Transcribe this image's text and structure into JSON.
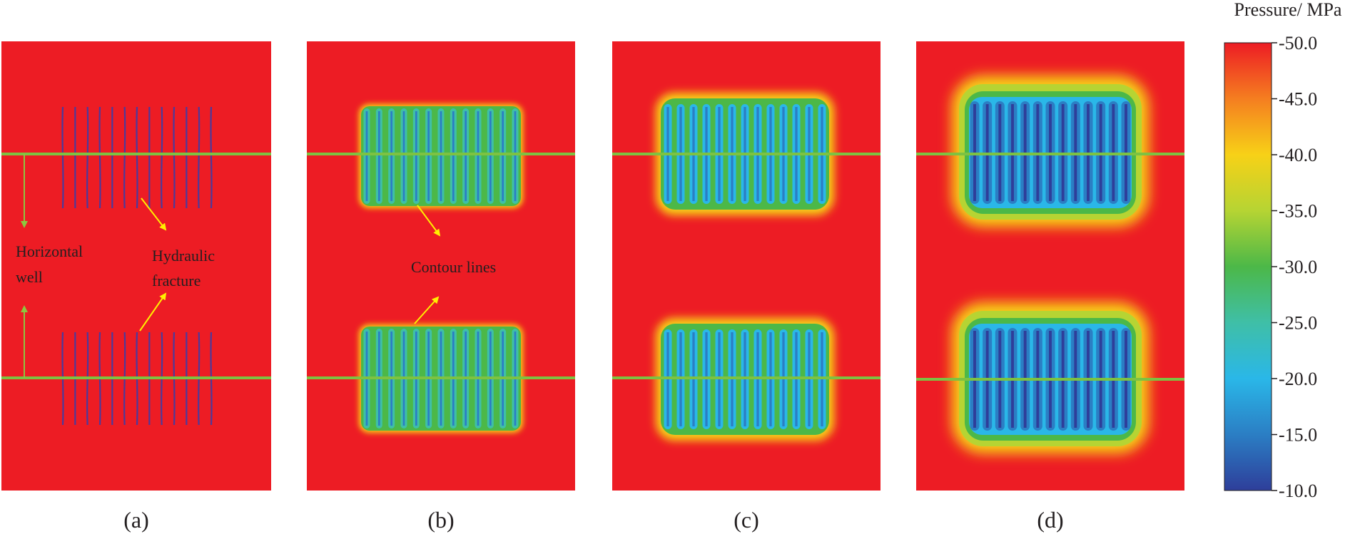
{
  "panels": [
    {
      "id": "a",
      "label": "(a)"
    },
    {
      "id": "b",
      "label": "(b)"
    },
    {
      "id": "c",
      "label": "(c)"
    },
    {
      "id": "d",
      "label": "(d)"
    }
  ],
  "annotations": {
    "horizontal_well": [
      "Horizontal",
      "well"
    ],
    "hydraulic_fracture": [
      "Hydraulic",
      "fracture"
    ],
    "contour_lines": "Contour lines"
  },
  "colorbar": {
    "title": "Pressure/ MPa",
    "ticks": [
      "-50.0",
      "-45.0",
      "-40.0",
      "-35.0",
      "-30.0",
      "-25.0",
      "-20.0",
      "-15.0",
      "-10.0"
    ],
    "range": [
      -50.0,
      -10.0
    ],
    "colors": [
      "#ed1c24",
      "#f57e20",
      "#f7d117",
      "#b6d433",
      "#4cb848",
      "#3fbfa7",
      "#2ab7e8",
      "#2b7ec4",
      "#2e3e9a"
    ]
  },
  "colors": {
    "background_red": "#ed1c24",
    "well_line": "#7dc242",
    "arrow_green": "#8dc63f",
    "arrow_yellow": "#ffef00",
    "fracture": "#4b3a9c"
  },
  "fractures_per_well": 13
}
